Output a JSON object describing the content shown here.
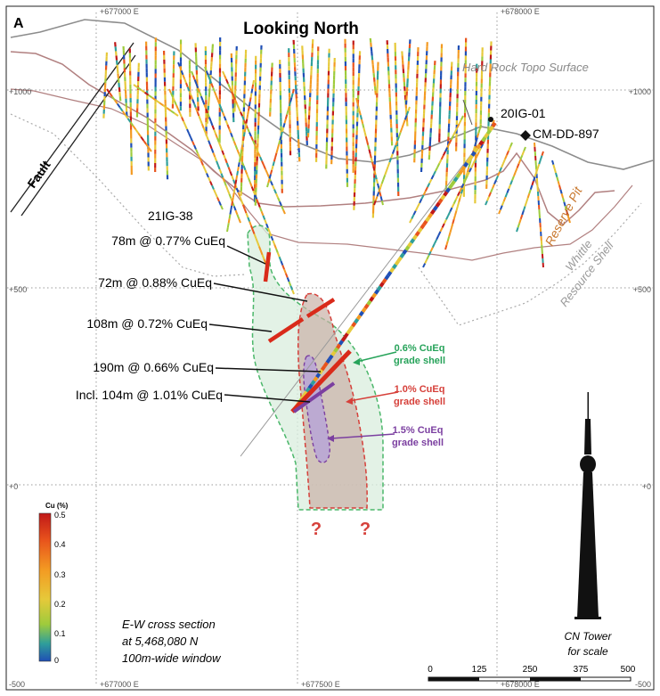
{
  "panel_letter": "A",
  "title": "Looking North",
  "coords": {
    "e_top": [
      "+677000 E",
      "+678000 E"
    ],
    "e_bottom": [
      "+677000 E",
      "+677500 E",
      "+678000 E"
    ],
    "elev_left": [
      "+1000",
      "+500",
      "+0",
      "-500"
    ],
    "elev_right": [
      "+1000",
      "+500",
      "+0",
      "-500"
    ]
  },
  "labels": {
    "fault": "Fault",
    "topo": "Hard Rock Topo Surface",
    "hole_a": "20IG-01",
    "hole_b": "CM-DD-897",
    "hole_c": "21IG-38",
    "reserve_pit": "Reserve Pit",
    "whittle_1": "Whittle",
    "whittle_2": "Resource Shell",
    "question": "?"
  },
  "intercepts": [
    "78m @ 0.77% CuEq",
    "72m @ 0.88% CuEq",
    "108m @ 0.72% CuEq",
    "190m @ 0.66% CuEq",
    "Incl. 104m @ 1.01% CuEq"
  ],
  "shells": [
    {
      "line1": "0.6% CuEq",
      "line2": "grade shell",
      "color": "#27a35a"
    },
    {
      "line1": "1.0% CuEq",
      "line2": "grade shell",
      "color": "#d6403a"
    },
    {
      "line1": "1.5% CuEq",
      "line2": "grade shell",
      "color": "#7b3fa0"
    }
  ],
  "legend": {
    "title": "Cu (%)",
    "ticks": [
      "0.5",
      "0.4",
      "0.3",
      "0.2",
      "0.1",
      "0"
    ],
    "colors": [
      "#c01818",
      "#e8531c",
      "#f39a22",
      "#e6c93a",
      "#9ecb3c",
      "#2f9f9a",
      "#1f4fb5"
    ]
  },
  "section_note": [
    "E-W cross section",
    "at 5,468,080 N",
    "100m-wide window"
  ],
  "tower_caption": [
    "CN Tower",
    "for scale"
  ],
  "scale_ticks": [
    "0",
    "125",
    "250",
    "375",
    "500"
  ]
}
